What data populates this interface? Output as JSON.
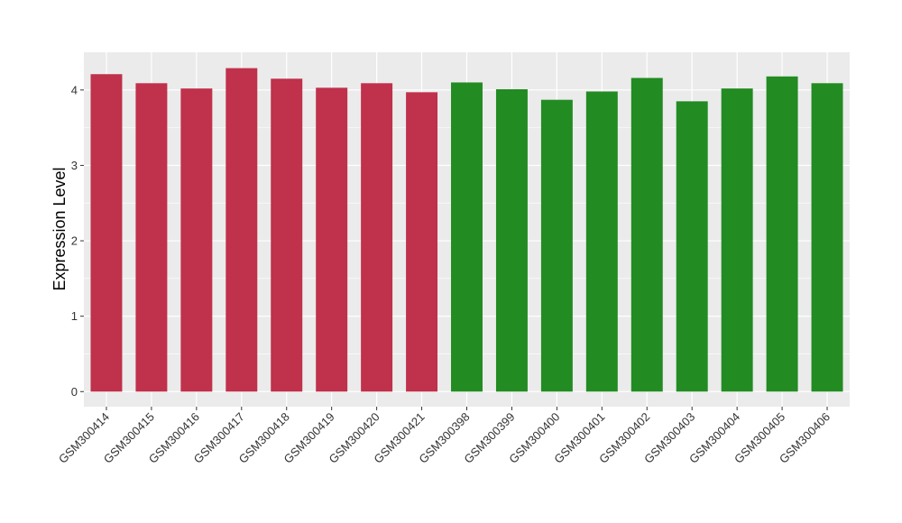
{
  "chart_data": {
    "type": "bar",
    "title": "",
    "xlabel": "",
    "ylabel": "Expression Level",
    "ylim": [
      -0.2,
      4.5
    ],
    "yticks": [
      0,
      1,
      2,
      3,
      4
    ],
    "grid": true,
    "legend": "none",
    "categories": [
      "GSM300414",
      "GSM300415",
      "GSM300416",
      "GSM300417",
      "GSM300418",
      "GSM300419",
      "GSM300420",
      "GSM300421",
      "GSM300398",
      "GSM300399",
      "GSM300400",
      "GSM300401",
      "GSM300402",
      "GSM300403",
      "GSM300404",
      "GSM300405",
      "GSM300406"
    ],
    "values": [
      4.21,
      4.09,
      4.02,
      4.29,
      4.15,
      4.03,
      4.09,
      3.97,
      4.1,
      4.01,
      3.87,
      3.98,
      4.16,
      3.85,
      4.02,
      4.18,
      4.09
    ],
    "bar_colors": [
      "#c0314b",
      "#c0314b",
      "#c0314b",
      "#c0314b",
      "#c0314b",
      "#c0314b",
      "#c0314b",
      "#c0314b",
      "#228b22",
      "#228b22",
      "#228b22",
      "#228b22",
      "#228b22",
      "#228b22",
      "#228b22",
      "#228b22",
      "#228b22"
    ],
    "panel_background": "#ebebeb",
    "grid_color": "#ffffff"
  }
}
